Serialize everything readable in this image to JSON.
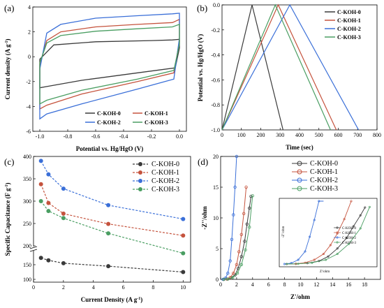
{
  "colors": {
    "C-KOH-0": "#3a3a3a",
    "C-KOH-1": "#c5533d",
    "C-KOH-2": "#3a6fd8",
    "C-KOH-3": "#4a9e62"
  },
  "chart_data": [
    {
      "panel": "(a)",
      "type": "line",
      "xlabel": "Potential vs. Hg/HgO (V)",
      "ylabel_main": "Current density (A g",
      "ylabel_sup": "-1",
      "ylabel_end": ")",
      "xlim": [
        -1.05,
        0.05
      ],
      "ylim": [
        -6,
        4
      ],
      "xticks": [
        "-1.0",
        "-0.8",
        "-0.6",
        "-0.4",
        "-0.2",
        "0.0"
      ],
      "yticks": [
        "-6",
        "-4",
        "-2",
        "0",
        "2",
        "4"
      ],
      "legend": [
        "C-KOH-0",
        "C-KOH-1",
        "C-KOH-2",
        "C-KOH-3"
      ],
      "series": [
        {
          "name": "C-KOH-0",
          "upper": [
            [
              -1.0,
              -0.2
            ],
            [
              -0.9,
              0.95
            ],
            [
              -0.6,
              1.2
            ],
            [
              -0.2,
              1.3
            ],
            [
              -0.05,
              1.35
            ],
            [
              0.0,
              1.4
            ]
          ],
          "lower": [
            [
              0.0,
              0.7
            ],
            [
              -0.03,
              -0.9
            ],
            [
              -0.3,
              -1.3
            ],
            [
              -0.7,
              -1.9
            ],
            [
              -0.95,
              -2.4
            ],
            [
              -1.0,
              -2.5
            ]
          ]
        },
        {
          "name": "C-KOH-1",
          "upper": [
            [
              -1.0,
              -0.6
            ],
            [
              -0.95,
              1.3
            ],
            [
              -0.85,
              2.0
            ],
            [
              -0.6,
              2.4
            ],
            [
              -0.3,
              2.6
            ],
            [
              -0.05,
              2.75
            ],
            [
              0.0,
              3.0
            ]
          ],
          "lower": [
            [
              0.0,
              1.2
            ],
            [
              -0.04,
              -1.3
            ],
            [
              -0.3,
              -2.0
            ],
            [
              -0.7,
              -3.0
            ],
            [
              -0.95,
              -3.9
            ],
            [
              -1.0,
              -4.2
            ]
          ]
        },
        {
          "name": "C-KOH-2",
          "upper": [
            [
              -1.0,
              -1.0
            ],
            [
              -0.95,
              1.9
            ],
            [
              -0.85,
              2.6
            ],
            [
              -0.6,
              3.1
            ],
            [
              -0.3,
              3.3
            ],
            [
              -0.05,
              3.45
            ],
            [
              0.0,
              3.5
            ]
          ],
          "lower": [
            [
              0.0,
              1.5
            ],
            [
              -0.04,
              -1.8
            ],
            [
              -0.3,
              -2.6
            ],
            [
              -0.7,
              -3.8
            ],
            [
              -0.95,
              -4.6
            ],
            [
              -1.0,
              -5.0
            ]
          ]
        },
        {
          "name": "C-KOH-3",
          "upper": [
            [
              -1.0,
              -0.5
            ],
            [
              -0.95,
              1.1
            ],
            [
              -0.85,
              1.7
            ],
            [
              -0.6,
              2.05
            ],
            [
              -0.3,
              2.25
            ],
            [
              -0.05,
              2.4
            ],
            [
              0.0,
              2.6
            ]
          ],
          "lower": [
            [
              0.0,
              1.0
            ],
            [
              -0.04,
              -1.1
            ],
            [
              -0.3,
              -1.8
            ],
            [
              -0.7,
              -2.7
            ],
            [
              -0.95,
              -3.5
            ],
            [
              -1.0,
              -3.8
            ]
          ]
        }
      ]
    },
    {
      "panel": "(b)",
      "type": "line",
      "xlabel": "Time (sec)",
      "ylabel": "Potential vs. Hg/HgO (V)",
      "xlim": [
        0,
        800
      ],
      "ylim": [
        -1.0,
        0.0
      ],
      "xticks": [
        "0",
        "100",
        "200",
        "300",
        "400",
        "500",
        "600",
        "700",
        "800"
      ],
      "yticks": [
        "-1.0",
        "-0.8",
        "-0.6",
        "-0.4",
        "-0.2",
        "0.0"
      ],
      "legend": [
        "C-KOH-0",
        "C-KOH-1",
        "C-KOH-2",
        "C-KOH-3"
      ],
      "series": [
        {
          "name": "C-KOH-0",
          "x": [
            0,
            155,
            315
          ],
          "y": [
            -1.0,
            0.0,
            -1.0
          ]
        },
        {
          "name": "C-KOH-1",
          "x": [
            0,
            290,
            590
          ],
          "y": [
            -1.0,
            0.0,
            -1.0
          ]
        },
        {
          "name": "C-KOH-2",
          "x": [
            0,
            350,
            705
          ],
          "y": [
            -1.0,
            0.0,
            -1.0
          ]
        },
        {
          "name": "C-KOH-3",
          "x": [
            0,
            275,
            560
          ],
          "y": [
            -1.0,
            0.0,
            -1.0
          ]
        }
      ]
    },
    {
      "panel": "(c)",
      "type": "line",
      "xlabel_main": "Current Density (A g",
      "xlabel_sup": "-1",
      "xlabel_end": ")",
      "ylabel_main": "Specific Capacitance (F g",
      "ylabel_sup": "-1",
      "ylabel_end": ")",
      "xlim": [
        0,
        10.5
      ],
      "xticks": [
        "0",
        "2",
        "4",
        "6",
        "8",
        "10"
      ],
      "yticks": [
        "100",
        "150",
        "200",
        "250",
        "300",
        "350",
        "400"
      ],
      "axis_break": true,
      "legend": [
        "C-KOH-0",
        "C-KOH-1",
        "C-KOH-2",
        "C-KOH-3"
      ],
      "series": [
        {
          "name": "C-KOH-0",
          "x": [
            0.5,
            1,
            2,
            5,
            10
          ],
          "y": [
            173,
            165,
            155,
            145,
            125
          ]
        },
        {
          "name": "C-KOH-1",
          "x": [
            0.5,
            1,
            2,
            5,
            10
          ],
          "y": [
            338,
            296,
            272,
            249,
            223
          ]
        },
        {
          "name": "C-KOH-2",
          "x": [
            0.5,
            1,
            2,
            5,
            10
          ],
          "y": [
            390,
            360,
            328,
            291,
            260
          ]
        },
        {
          "name": "C-KOH-3",
          "x": [
            0.5,
            1,
            2,
            5,
            10
          ],
          "y": [
            300,
            278,
            262,
            228,
            189
          ]
        }
      ]
    },
    {
      "panel": "(d)",
      "type": "scatter",
      "xlabel": "Z'/ohm",
      "ylabel": "-Z''/ohm",
      "xlim": [
        0,
        20
      ],
      "ylim": [
        0,
        20
      ],
      "xticks": [
        "0",
        "2",
        "4",
        "6",
        "8",
        "10",
        "12",
        "14",
        "16",
        "18"
      ],
      "yticks": [
        "0",
        "5",
        "10",
        "15",
        "20"
      ],
      "legend": [
        "C-KOH-0",
        "C-KOH-1",
        "C-KOH-2",
        "C-KOH-3"
      ],
      "series": [
        {
          "name": "C-KOH-0",
          "x": [
            0.4,
            0.8,
            1.3,
            1.8,
            2.2,
            2.6,
            3.0,
            3.3,
            3.6,
            3.8
          ],
          "y": [
            0.0,
            0.05,
            0.2,
            0.7,
            1.8,
            3.7,
            6.2,
            9.0,
            11.6,
            13.5
          ]
        },
        {
          "name": "C-KOH-1",
          "x": [
            0.4,
            0.8,
            1.2,
            1.6,
            2.0,
            2.3,
            2.6,
            2.9,
            3.2
          ],
          "y": [
            0.0,
            0.05,
            0.3,
            1.0,
            2.4,
            4.5,
            7.3,
            10.7,
            15.0
          ]
        },
        {
          "name": "C-KOH-2",
          "x": [
            0.3,
            0.6,
            0.9,
            1.2,
            1.4,
            1.6,
            1.8,
            2.0
          ],
          "y": [
            0.0,
            0.2,
            1.0,
            3.0,
            6.5,
            10.5,
            15.0,
            20.0
          ]
        },
        {
          "name": "C-KOH-3",
          "x": [
            0.4,
            0.9,
            1.5,
            2.1,
            2.6,
            3.1,
            3.6,
            4.0
          ],
          "y": [
            0.0,
            0.05,
            0.3,
            1.0,
            2.4,
            4.8,
            8.5,
            13.6
          ]
        }
      ],
      "inset": {
        "xlabel": "Z'/ohm",
        "ylabel": "-Z''/ohm",
        "legend": [
          "C-KOH-0",
          "C-KOH-1",
          "C-KOH-2",
          "C-KOH-3"
        ]
      }
    }
  ]
}
